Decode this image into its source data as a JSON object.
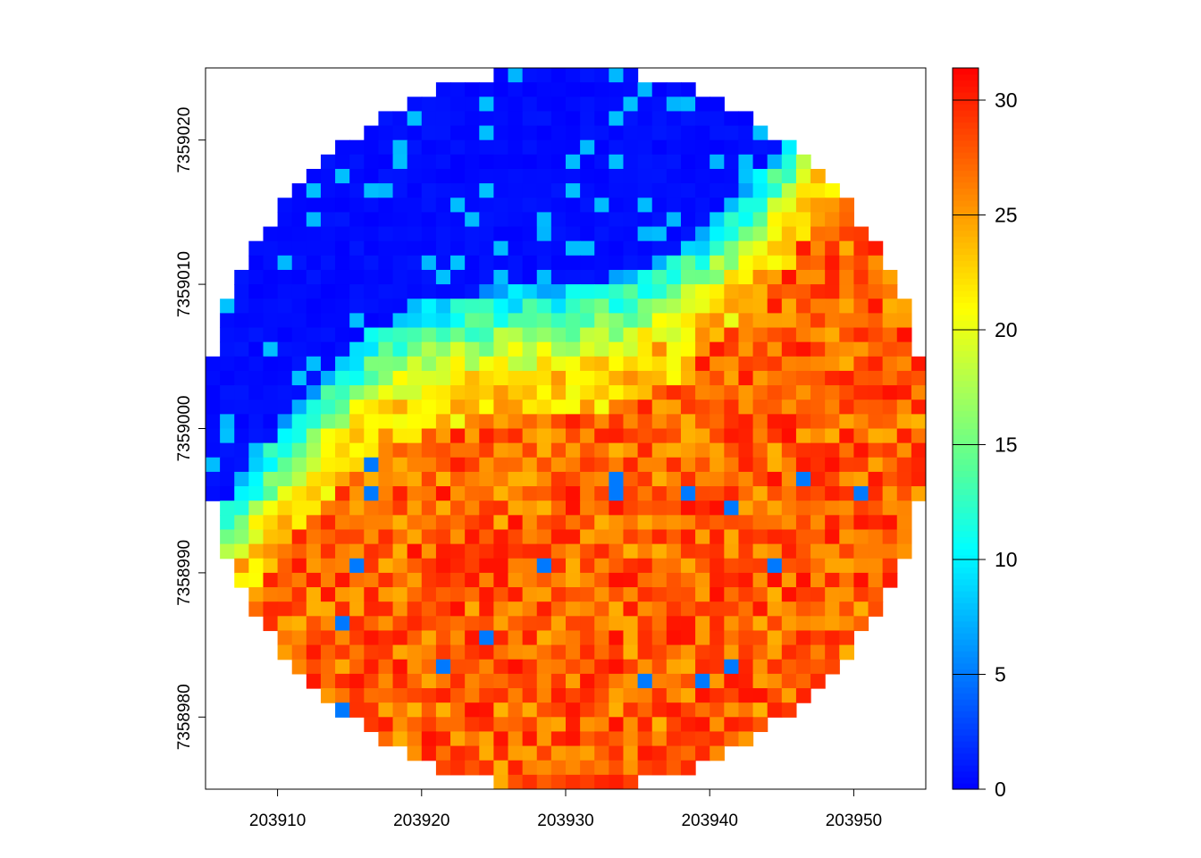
{
  "chart_data": {
    "type": "heatmap",
    "title": "",
    "xlabel": "",
    "ylabel": "",
    "xlim": [
      203905,
      203955
    ],
    "ylim": [
      7358975,
      7359025
    ],
    "cell_size": 1,
    "x_ticks": [
      203910,
      203920,
      203930,
      203940,
      203950
    ],
    "x_tick_labels": [
      "203910",
      "203920",
      "203930",
      "203940",
      "203950"
    ],
    "y_ticks": [
      7358980,
      7358990,
      7359000,
      7359010,
      7359020
    ],
    "y_tick_labels": [
      "7358980",
      "7358990",
      "7359000",
      "7359010",
      "7359020"
    ],
    "value_range": [
      0,
      31.4
    ],
    "colorbar_ticks": [
      0,
      5,
      10,
      15,
      20,
      25,
      30
    ],
    "colorbar_tick_labels": [
      "0",
      "5",
      "10",
      "15",
      "20",
      "25",
      "30"
    ],
    "colormap": [
      "#0000FF",
      "#0055FF",
      "#00AAFF",
      "#00FFFF",
      "#55FF99",
      "#AAFF55",
      "#FFFF00",
      "#FFAA00",
      "#FF5500",
      "#FF0000"
    ],
    "mask": "circle",
    "circle_center": [
      203930,
      7359000
    ],
    "circle_radius": 25,
    "zones": [
      {
        "region": "north (upper ~40% of circle)",
        "value_approx": 0,
        "color_name": "blue"
      },
      {
        "region": "transition band running from west to northeast",
        "value_approx": [
          10,
          20
        ],
        "color_name": "cyan / green / yellow"
      },
      {
        "region": "south and east (lower ~60% of circle)",
        "value_approx": [
          25,
          31
        ],
        "color_name": "orange / red"
      }
    ]
  }
}
